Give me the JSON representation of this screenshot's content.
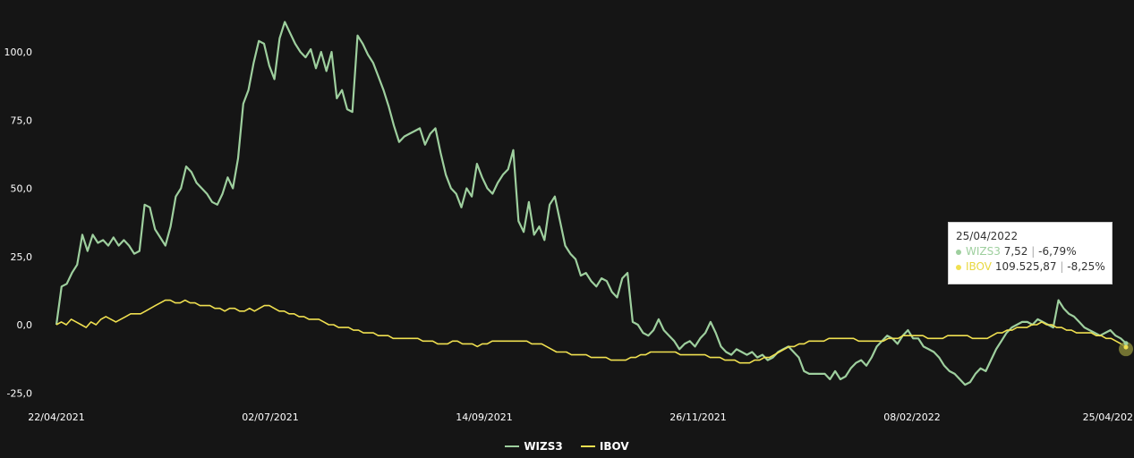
{
  "chart_data": {
    "type": "line",
    "x_tick_labels": [
      "22/04/2021",
      "02/07/2021",
      "14/09/2021",
      "26/11/2021",
      "08/02/2022",
      "25/04/202"
    ],
    "y_tick_labels": [
      "100,0",
      "75,0",
      "50,0",
      "25,0",
      "0,0",
      "-25,0"
    ],
    "y_ticks": [
      100,
      75,
      50,
      25,
      0,
      -25
    ],
    "ylim": [
      -25,
      115
    ],
    "grid": false,
    "legend_position": "bottom-center",
    "series": [
      {
        "name": "WIZS3",
        "color": "#9ecf9e",
        "values": [
          0,
          14,
          15,
          19,
          22,
          33,
          27,
          33,
          30,
          31,
          29,
          32,
          29,
          31,
          29,
          26,
          27,
          44,
          43,
          35,
          32,
          29,
          36,
          47,
          50,
          58,
          56,
          52,
          50,
          48,
          45,
          44,
          48,
          54,
          50,
          61,
          81,
          86,
          96,
          104,
          103,
          95,
          90,
          105,
          111,
          107,
          103,
          100,
          98,
          101,
          94,
          100,
          93,
          100,
          83,
          86,
          79,
          78,
          106,
          103,
          99,
          96,
          91,
          86,
          80,
          73,
          67,
          69,
          70,
          71,
          72,
          66,
          70,
          72,
          63,
          55,
          50,
          48,
          43,
          50,
          47,
          59,
          54,
          50,
          48,
          52,
          55,
          57,
          64,
          38,
          34,
          45,
          33,
          36,
          31,
          44,
          47,
          38,
          29,
          26,
          24,
          18,
          19,
          16,
          14,
          17,
          16,
          12,
          10,
          17,
          19,
          1,
          0,
          -3,
          -4,
          -2,
          2,
          -2,
          -4,
          -6,
          -9,
          -7,
          -6,
          -8,
          -5,
          -3,
          1,
          -3,
          -8,
          -10,
          -11,
          -9,
          -10,
          -11,
          -10,
          -12,
          -11,
          -13,
          -12,
          -10,
          -9,
          -8,
          -10,
          -12,
          -17,
          -18,
          -18,
          -18,
          -18,
          -20,
          -17,
          -20,
          -19,
          -16,
          -14,
          -13,
          -15,
          -12,
          -8,
          -6,
          -4,
          -5,
          -7,
          -4,
          -2,
          -5,
          -5,
          -8,
          -9,
          -10,
          -12,
          -15,
          -17,
          -18,
          -20,
          -22,
          -21,
          -18,
          -16,
          -17,
          -13,
          -9,
          -6,
          -3,
          -1,
          0,
          1,
          1,
          0,
          2,
          1,
          0,
          -1,
          9,
          6,
          4,
          3,
          1,
          -1,
          -2,
          -3,
          -4,
          -3,
          -2,
          -4,
          -5,
          -6.79
        ]
      },
      {
        "name": "IBOV",
        "color": "#f0e050",
        "values": [
          0,
          1,
          0,
          2,
          1,
          0,
          -1,
          1,
          0,
          2,
          3,
          2,
          1,
          2,
          3,
          4,
          4,
          4,
          5,
          6,
          7,
          8,
          9,
          9,
          8,
          8,
          9,
          8,
          8,
          7,
          7,
          7,
          6,
          6,
          5,
          6,
          6,
          5,
          5,
          6,
          5,
          6,
          7,
          7,
          6,
          5,
          5,
          4,
          4,
          3,
          3,
          2,
          2,
          2,
          1,
          0,
          0,
          -1,
          -1,
          -1,
          -2,
          -2,
          -3,
          -3,
          -3,
          -4,
          -4,
          -4,
          -5,
          -5,
          -5,
          -5,
          -5,
          -5,
          -6,
          -6,
          -6,
          -7,
          -7,
          -7,
          -6,
          -6,
          -7,
          -7,
          -7,
          -8,
          -7,
          -7,
          -6,
          -6,
          -6,
          -6,
          -6,
          -6,
          -6,
          -6,
          -7,
          -7,
          -7,
          -8,
          -9,
          -10,
          -10,
          -10,
          -11,
          -11,
          -11,
          -11,
          -12,
          -12,
          -12,
          -12,
          -13,
          -13,
          -13,
          -13,
          -12,
          -12,
          -11,
          -11,
          -10,
          -10,
          -10,
          -10,
          -10,
          -10,
          -11,
          -11,
          -11,
          -11,
          -11,
          -11,
          -12,
          -12,
          -12,
          -13,
          -13,
          -13,
          -14,
          -14,
          -14,
          -13,
          -13,
          -12,
          -12,
          -11,
          -10,
          -9,
          -8,
          -8,
          -7,
          -7,
          -6,
          -6,
          -6,
          -6,
          -5,
          -5,
          -5,
          -5,
          -5,
          -5,
          -6,
          -6,
          -6,
          -6,
          -6,
          -6,
          -5,
          -5,
          -5,
          -4,
          -4,
          -4,
          -4,
          -4,
          -5,
          -5,
          -5,
          -5,
          -4,
          -4,
          -4,
          -4,
          -4,
          -5,
          -5,
          -5,
          -5,
          -4,
          -3,
          -3,
          -2,
          -2,
          -1,
          -1,
          -1,
          0,
          0,
          1,
          0,
          0,
          -1,
          -1,
          -2,
          -2,
          -3,
          -3,
          -3,
          -3,
          -4,
          -4,
          -5,
          -5,
          -6,
          -7,
          -8.25
        ]
      }
    ],
    "tooltip": {
      "date": "25/04/2022",
      "rows": [
        {
          "name": "WIZS3",
          "value": "7,52",
          "change": "-6,79%",
          "color": "#9ecf9e"
        },
        {
          "name": "IBOV",
          "value": "109.525,87",
          "change": "-8,25%",
          "color": "#f0e050"
        }
      ]
    }
  }
}
